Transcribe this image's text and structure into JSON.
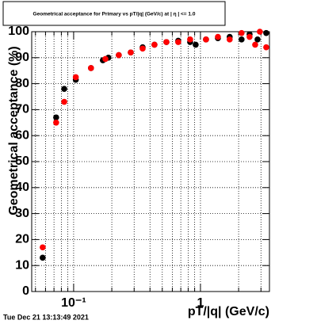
{
  "chart_data": {
    "type": "scatter",
    "title": "Geometrical acceptance for Primary vs pT/|q| (GeV/c) at | η | <= 1.0",
    "x_label": "pT/|q| (GeV/c)",
    "y_label": "Geometrical acceptance (%)",
    "footer": "Tue Dec 21 13:13:49 2021",
    "log_x": true,
    "grid": true,
    "xlim": [
      0.0467,
      3.5
    ],
    "ylim": [
      0,
      100
    ],
    "xticks": [
      {
        "value": 0.1,
        "label": "10⁻¹"
      },
      1
    ],
    "xminor_ticks": [
      0.05,
      0.06,
      0.07,
      0.08,
      0.09,
      0.2,
      0.3,
      0.4,
      0.5,
      0.6,
      0.7,
      0.8,
      0.9,
      2,
      3
    ],
    "yticks": [
      0,
      10,
      20,
      30,
      40,
      50,
      60,
      70,
      80,
      90,
      100
    ],
    "series": [
      {
        "color": "#000000",
        "x": [
          0.057,
          0.0728,
          0.0843,
          0.104,
          0.137,
          0.17,
          0.188,
          0.227,
          0.282,
          0.35,
          0.434,
          0.539,
          0.668,
          0.829,
          0.917,
          1.106,
          1.373,
          1.7,
          2.11,
          2.44,
          2.82,
          3.3
        ],
        "values": [
          13,
          67,
          78,
          81.5,
          86,
          89,
          90,
          91,
          92,
          94,
          95,
          96,
          96.5,
          96,
          95,
          97,
          97.5,
          98,
          97,
          99,
          97,
          99.5
        ]
      },
      {
        "color": "#ff0000",
        "x": [
          0.057,
          0.0728,
          0.0843,
          0.104,
          0.137,
          0.178,
          0.227,
          0.282,
          0.35,
          0.434,
          0.539,
          0.668,
          0.829,
          1.106,
          1.373,
          1.7,
          2.11,
          2.44,
          2.7,
          2.94,
          3.3
        ],
        "values": [
          17,
          65,
          73,
          82.5,
          86,
          89.5,
          91,
          92,
          93.5,
          95,
          96,
          96,
          97,
          97,
          98,
          97,
          99.5,
          98,
          95,
          100,
          94
        ]
      }
    ]
  }
}
